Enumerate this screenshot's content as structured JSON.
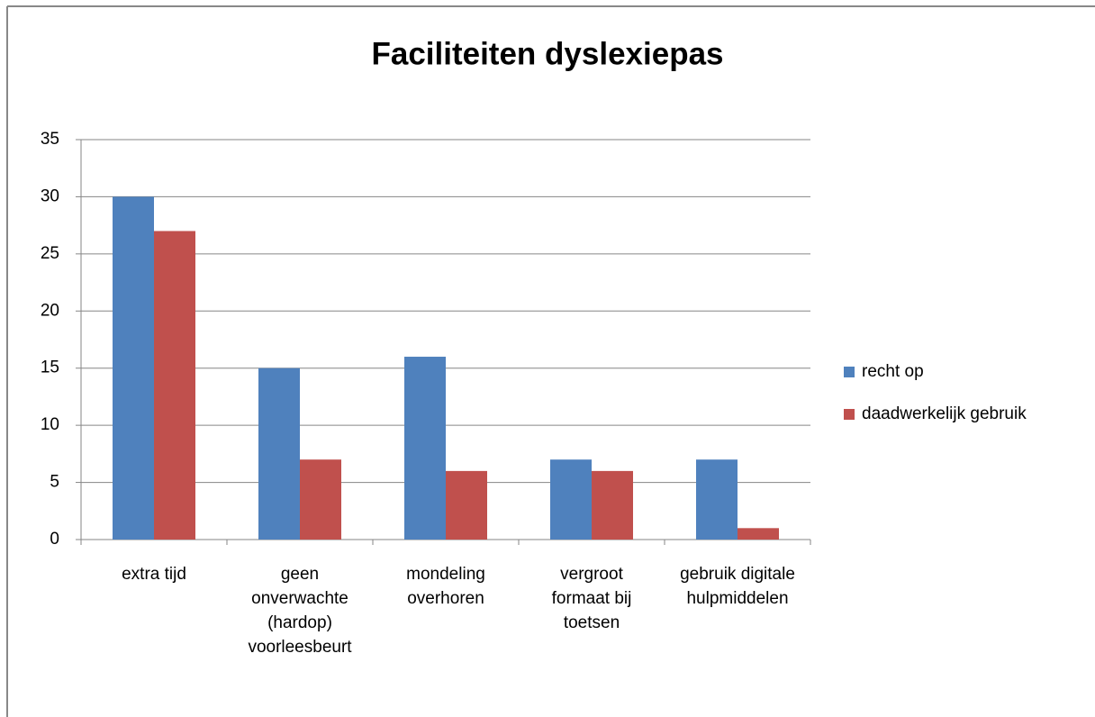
{
  "chart_data": {
    "type": "bar",
    "title": "Faciliteiten dyslexiepas",
    "categories": [
      "extra tijd",
      "geen onverwachte (hardop) voorleesbeurt",
      "mondeling overhoren",
      "vergroot formaat bij toetsen",
      "gebruik digitale hulpmiddelen"
    ],
    "series": [
      {
        "name": "recht op",
        "color": "#4f81bd",
        "values": [
          30,
          15,
          16,
          7,
          7
        ]
      },
      {
        "name": "daadwerkelijk gebruik",
        "color": "#c0504d",
        "values": [
          27,
          7,
          6,
          6,
          1
        ]
      }
    ],
    "ylim": [
      0,
      35
    ],
    "yticks": [
      0,
      5,
      10,
      15,
      20,
      25,
      30,
      35
    ],
    "grid": true,
    "legend": "right"
  }
}
